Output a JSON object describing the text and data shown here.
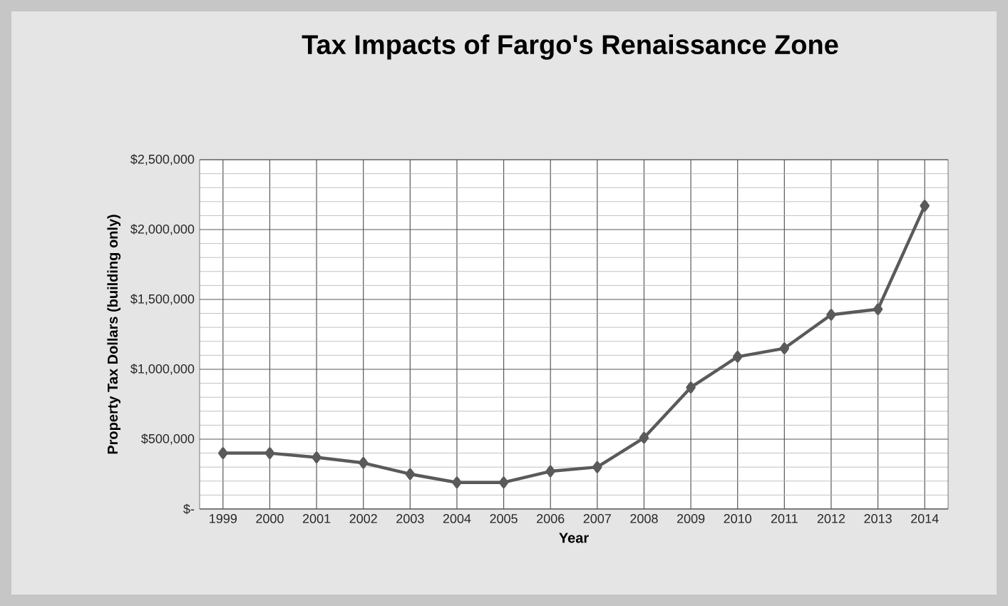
{
  "chart_data": {
    "type": "line",
    "title": "Tax Impacts of Fargo's Renaissance Zone",
    "xlabel": "Year",
    "ylabel": "Property Tax Dollars (building only)",
    "categories": [
      "1999",
      "2000",
      "2001",
      "2002",
      "2003",
      "2004",
      "2005",
      "2006",
      "2007",
      "2008",
      "2009",
      "2010",
      "2011",
      "2012",
      "2013",
      "2014"
    ],
    "series": [
      {
        "color": "#5a5a5a",
        "values": [
          400000,
          400000,
          370000,
          330000,
          250000,
          190000,
          190000,
          270000,
          300000,
          510000,
          870000,
          1090000,
          1150000,
          1390000,
          1430000,
          2170000
        ]
      }
    ],
    "ylim": [
      0,
      2500000
    ],
    "yticks": [
      {
        "value": 0,
        "label": "$-"
      },
      {
        "value": 500000,
        "label": "$500,000"
      },
      {
        "value": 1000000,
        "label": "$1,000,000"
      },
      {
        "value": 1500000,
        "label": "$1,500,000"
      },
      {
        "value": 2000000,
        "label": "$2,000,000"
      },
      {
        "value": 2500000,
        "label": "$2,500,000"
      }
    ],
    "grid": true,
    "marker": "diamond",
    "line_style": "solid"
  }
}
